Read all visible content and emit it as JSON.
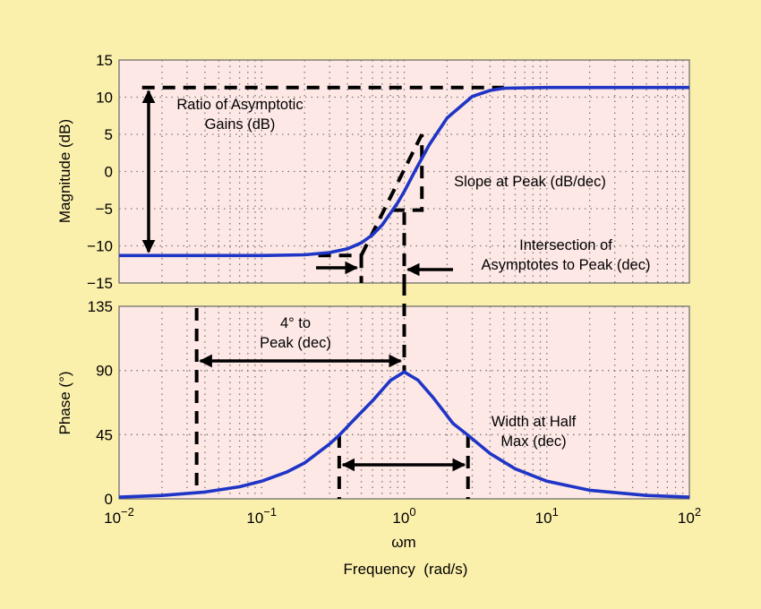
{
  "chart_data": [
    {
      "type": "line",
      "panel": "magnitude",
      "ylabel": "Magnitude (dB)",
      "xscale": "log",
      "xlim": [
        0.01,
        100
      ],
      "ylim": [
        -15,
        15
      ],
      "yticks": [
        15,
        10,
        5,
        0,
        -5,
        -10,
        -15
      ],
      "ytick_labels": [
        "15",
        "10",
        "5",
        "0",
        "−5",
        "−10",
        "−15"
      ],
      "grid": true,
      "series": [
        {
          "x": [
            0.01,
            0.05,
            0.1,
            0.2,
            0.3,
            0.4,
            0.5,
            0.6,
            0.7,
            0.8,
            0.9,
            1.0,
            1.2,
            1.5,
            2.0,
            3.0,
            4.0,
            5.0,
            10,
            100
          ],
          "values": [
            -11.3,
            -11.3,
            -11.3,
            -11.2,
            -10.9,
            -10.4,
            -9.6,
            -8.5,
            -7.2,
            -5.6,
            -4.2,
            -2.7,
            0.2,
            3.6,
            7.2,
            10.1,
            10.9,
            11.2,
            11.3,
            11.3
          ]
        }
      ],
      "asymptotes": {
        "low_level": -11.3,
        "high_level": 11.3,
        "peak_slope_line": [
          [
            0.5,
            -11.3
          ],
          [
            1.0,
            -5.2
          ],
          [
            1.33,
            5
          ]
        ]
      },
      "annotations": [
        {
          "text_lines": [
            "Ratio of Asymptotic",
            "Gains (dB)"
          ]
        },
        {
          "text_lines": [
            "Slope at Peak (dB/dec)"
          ]
        },
        {
          "text_lines": [
            "Intersection of",
            "Asymptotes to Peak (dec)"
          ]
        }
      ]
    },
    {
      "type": "line",
      "panel": "phase",
      "ylabel": "Phase (°)",
      "xlabel": "ωm",
      "xlabel_sub": "Frequency  (rad/s)",
      "xscale": "log",
      "xlim": [
        0.01,
        100
      ],
      "xticks": [
        0.01,
        0.1,
        1,
        10,
        100
      ],
      "xtick_labels": [
        {
          "base": "10",
          "exp": "−2"
        },
        {
          "base": "10",
          "exp": "−1"
        },
        {
          "base": "10",
          "exp": "0"
        },
        {
          "base": "10",
          "exp": "1"
        },
        {
          "base": "10",
          "exp": "2"
        }
      ],
      "ylim": [
        0,
        135
      ],
      "yticks": [
        135,
        90,
        45,
        0
      ],
      "ytick_labels": [
        "135",
        "90",
        "45",
        "0"
      ],
      "grid": true,
      "series": [
        {
          "x": [
            0.01,
            0.02,
            0.04,
            0.07,
            0.1,
            0.15,
            0.2,
            0.3,
            0.35,
            0.45,
            0.6,
            0.8,
            1.0,
            1.25,
            1.6,
            2.2,
            2.8,
            4.0,
            6.0,
            10,
            20,
            50,
            100
          ],
          "values": [
            1.2,
            2.4,
            4.8,
            8.5,
            12.4,
            18.8,
            25.2,
            38.5,
            44.6,
            56.0,
            68.8,
            83.0,
            89.0,
            83.2,
            70.8,
            52.9,
            44.6,
            31.8,
            21.1,
            12.4,
            6.0,
            2.4,
            1.2
          ]
        }
      ],
      "markers": {
        "four_degree_x": 0.035,
        "peak_x": 1.0,
        "half_max_left_x": 0.35,
        "half_max_right_x": 2.8
      },
      "annotations": [
        {
          "text_lines": [
            "4° to",
            "Peak (dec)"
          ]
        },
        {
          "text_lines": [
            "Width at Half",
            "Max (dec)"
          ]
        }
      ]
    }
  ],
  "colors": {
    "background": "#fbefac",
    "plot_area": "#fde8e5",
    "curve": "#1f35c6",
    "annotation": "#000000"
  }
}
